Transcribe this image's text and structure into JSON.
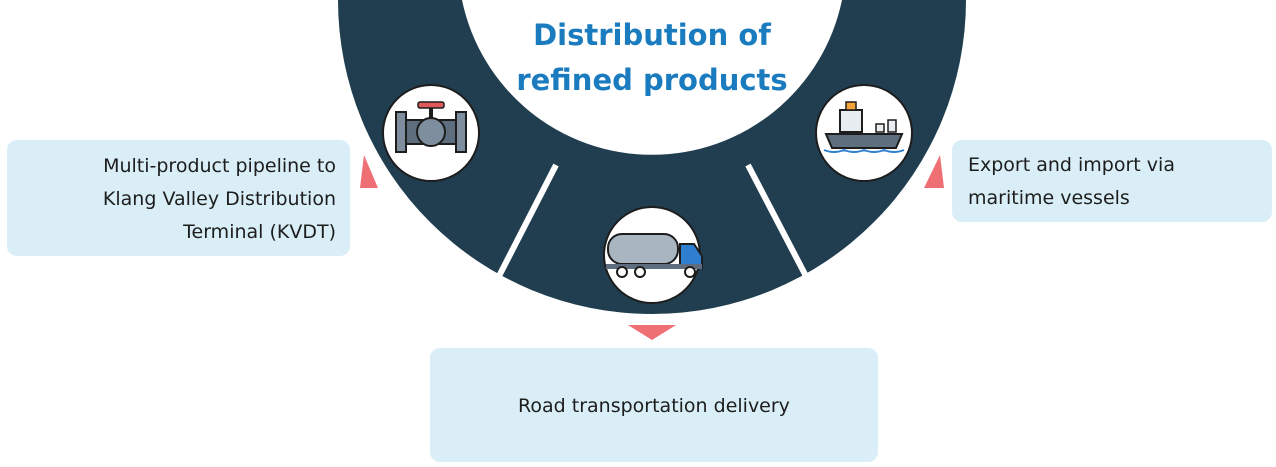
{
  "title": [
    "Distribution of",
    "refined products"
  ],
  "boxes": [
    {
      "lines": [
        "Multi-product pipeline to",
        "Klang Valley Distribution",
        "Terminal (KVDT)"
      ]
    },
    {
      "lines": [
        "Export and import via",
        "maritime vessels"
      ]
    },
    {
      "lines": [
        "Road transportation delivery"
      ]
    }
  ]
}
